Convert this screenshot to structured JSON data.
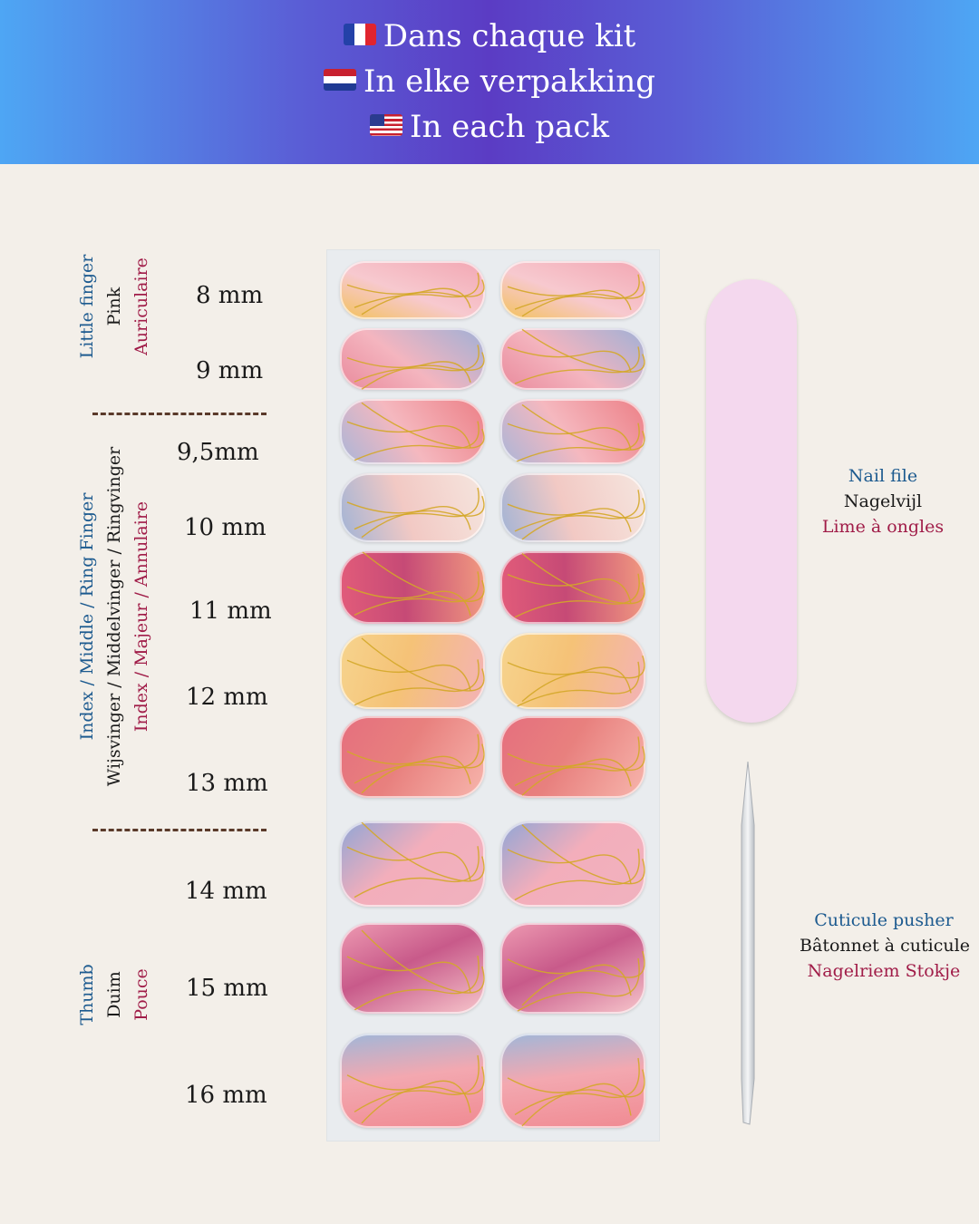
{
  "header": {
    "lines": [
      {
        "flag": "france-flag-icon",
        "text": "Dans chaque kit"
      },
      {
        "flag": "netherlands-flag-icon",
        "text": "In elke verpakking"
      },
      {
        "flag": "usa-flag-icon",
        "text": "In each pack"
      }
    ]
  },
  "groups": {
    "little": {
      "en": "Little finger",
      "nl": "Pink",
      "fr": "Auriculaire"
    },
    "middle": {
      "en": "Index / Middle / Ring Finger",
      "nl": "Wijsvinger / Middelvinger / Ringvinger",
      "fr": "Index / Majeur / Annulaire"
    },
    "thumb": {
      "en": "Thumb",
      "nl": "Duim",
      "fr": "Pouce"
    }
  },
  "sizes": [
    "8 mm",
    "9 mm",
    "9,5mm",
    "10 mm",
    "11 mm",
    "12 mm",
    "13 mm",
    "14 mm",
    "15 mm",
    "16 mm"
  ],
  "tools": {
    "file": {
      "en": "Nail file",
      "nl": "Nagelvijl",
      "fr": "Lime à ongles"
    },
    "pusher": {
      "en": "Cuticule pusher",
      "fr": "Bâtonnet à cuticule",
      "nl": "Nagelriem Stokje"
    }
  },
  "colors": {
    "blue_label": "#1c5a8f",
    "red_label": "#a01c48",
    "file_pink": "#f4d8ee",
    "gold": "#d4a829"
  }
}
